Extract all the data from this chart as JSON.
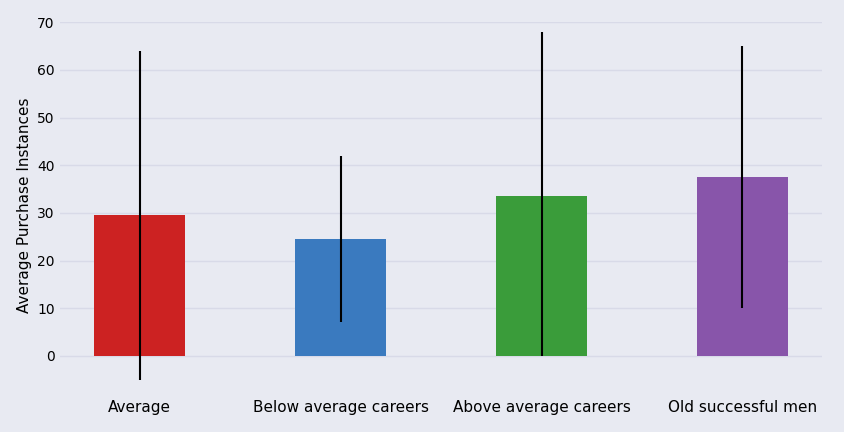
{
  "categories": [
    "Average",
    "Below average careers",
    "Above average careers",
    "Old successful men"
  ],
  "values": [
    29.5,
    24.5,
    33.5,
    37.5
  ],
  "errors_lower": [
    34.5,
    17.5,
    33.5,
    27.5
  ],
  "errors_upper": [
    34.5,
    17.5,
    34.5,
    27.5
  ],
  "bar_colors": [
    "#cc2222",
    "#3a7abf",
    "#3a9c3a",
    "#8855aa"
  ],
  "ylabel": "Average Purchase Instances",
  "ylim": [
    -7,
    70
  ],
  "yticks": [
    0,
    10,
    20,
    30,
    40,
    50,
    60,
    70
  ],
  "background_color": "#e8eaf2",
  "plot_background": "#e8eaf2",
  "grid_color": "#d8dae8",
  "figsize": [
    8.45,
    4.32
  ],
  "dpi": 100
}
